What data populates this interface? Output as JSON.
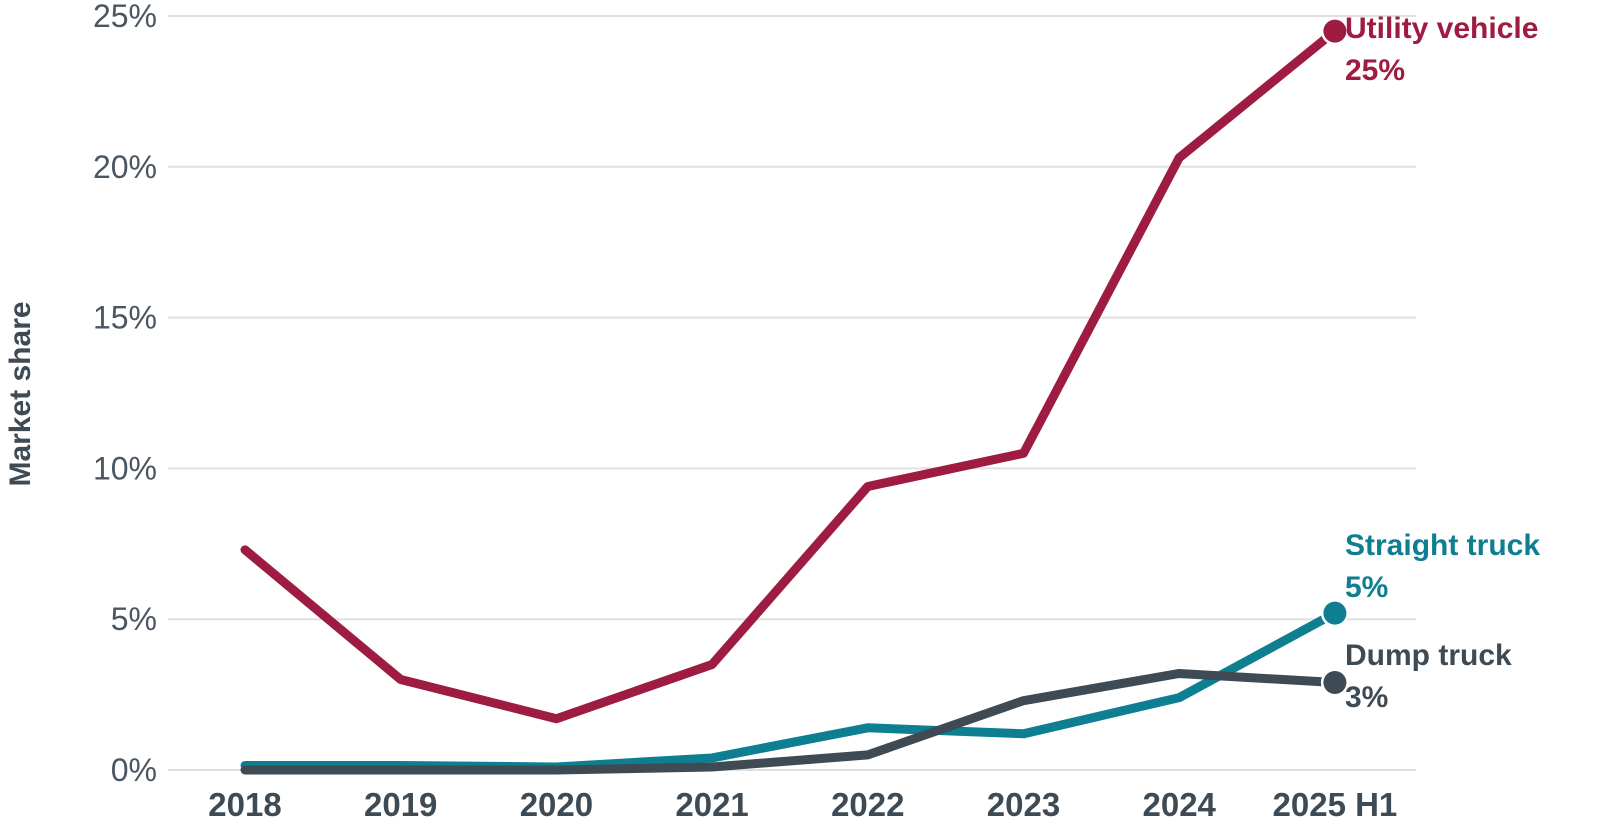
{
  "chart_data": {
    "type": "line",
    "title": "",
    "ylabel": "Market share",
    "xlabel": "",
    "grid": true,
    "legend_position": "right-end-labels",
    "ylim": [
      0,
      25
    ],
    "categories": [
      "2018",
      "2019",
      "2020",
      "2021",
      "2022",
      "2023",
      "2024",
      "2025 H1"
    ],
    "y_axis": {
      "ticks": [
        {
          "value": 0,
          "label": "0%"
        },
        {
          "value": 5,
          "label": "5%"
        },
        {
          "value": 10,
          "label": "10%"
        },
        {
          "value": 15,
          "label": "15%"
        },
        {
          "value": 20,
          "label": "20%"
        },
        {
          "value": 25,
          "label": "25%"
        }
      ]
    },
    "series": [
      {
        "id": "utility-vehicle",
        "name": "Utility vehicle",
        "end_label": "25%",
        "color": "#9E1B41",
        "values": [
          7.3,
          3.0,
          1.7,
          3.5,
          9.4,
          10.5,
          20.3,
          24.5
        ]
      },
      {
        "id": "straight-truck",
        "name": "Straight truck",
        "end_label": "5%",
        "color": "#0E7E91",
        "values": [
          0.15,
          0.15,
          0.1,
          0.4,
          1.4,
          1.2,
          2.4,
          5.2
        ]
      },
      {
        "id": "dump-truck",
        "name": "Dump truck",
        "end_label": "3%",
        "color": "#3E4A54",
        "values": [
          0.0,
          0.0,
          0.0,
          0.1,
          0.5,
          2.3,
          3.2,
          2.9
        ]
      }
    ],
    "style": {
      "grid_color": "#E0E0E0",
      "y_tick_color": "#4A5661",
      "x_tick_color": "#3E4A54",
      "background": "#FFFFFF"
    }
  }
}
